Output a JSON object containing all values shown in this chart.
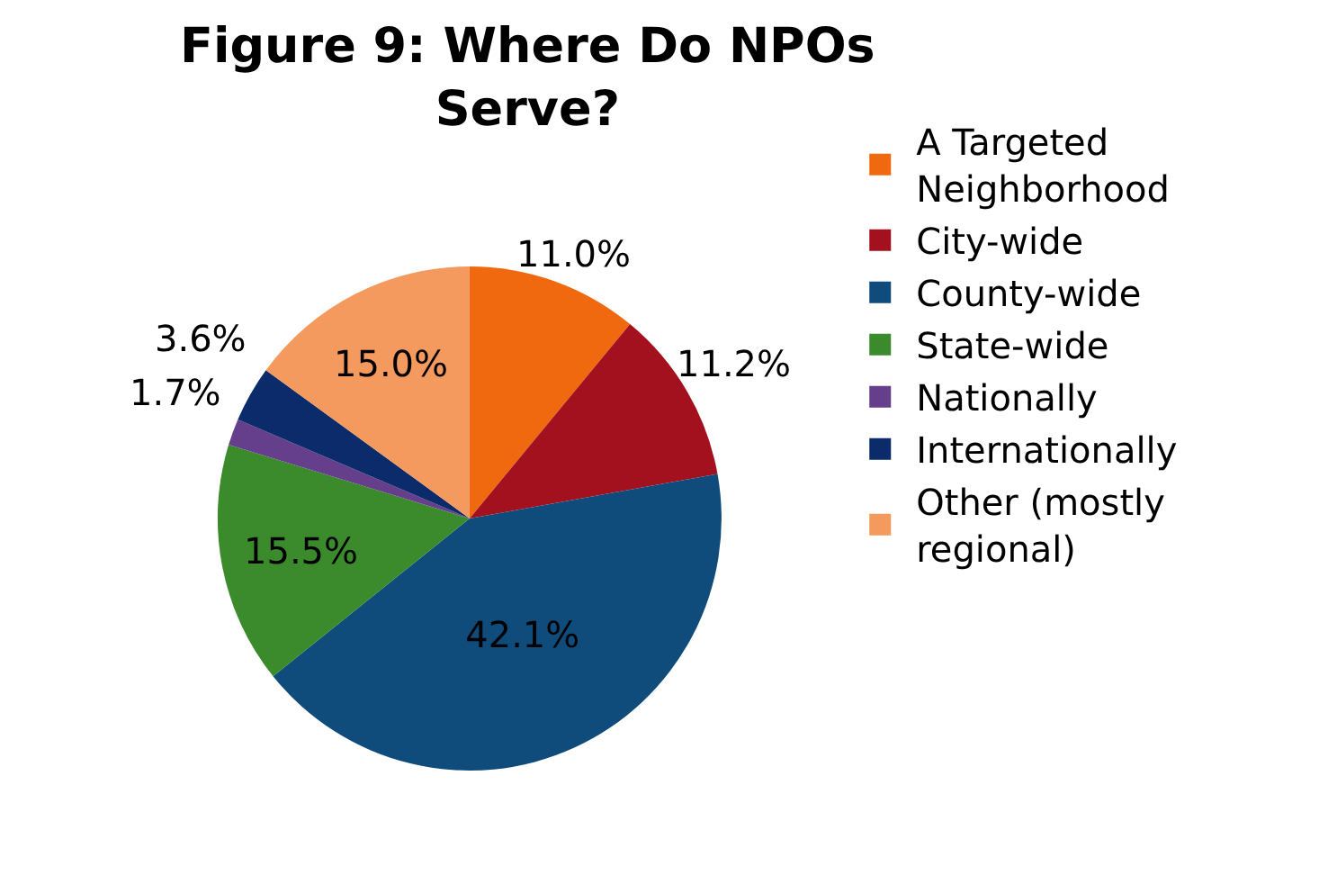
{
  "chart_data": {
    "type": "pie",
    "title": "Figure 9: Where Do NPOs Serve?",
    "categories": [
      "A Targeted Neighborhood",
      "City-wide",
      "County-wide",
      "State-wide",
      "Nationally",
      "Internationally",
      "Other (mostly regional)"
    ],
    "values": [
      11.0,
      11.2,
      42.1,
      15.5,
      1.7,
      3.6,
      15.0
    ],
    "colors": [
      "#f0690f",
      "#a3111f",
      "#0f4c7c",
      "#3b8a2c",
      "#653e8c",
      "#0b2b6b",
      "#f59a5e"
    ],
    "value_labels": [
      "11.0%",
      "11.2%",
      "42.1%",
      "15.5%",
      "1.7%",
      "3.6%",
      "15.0%"
    ],
    "legend": "right"
  }
}
